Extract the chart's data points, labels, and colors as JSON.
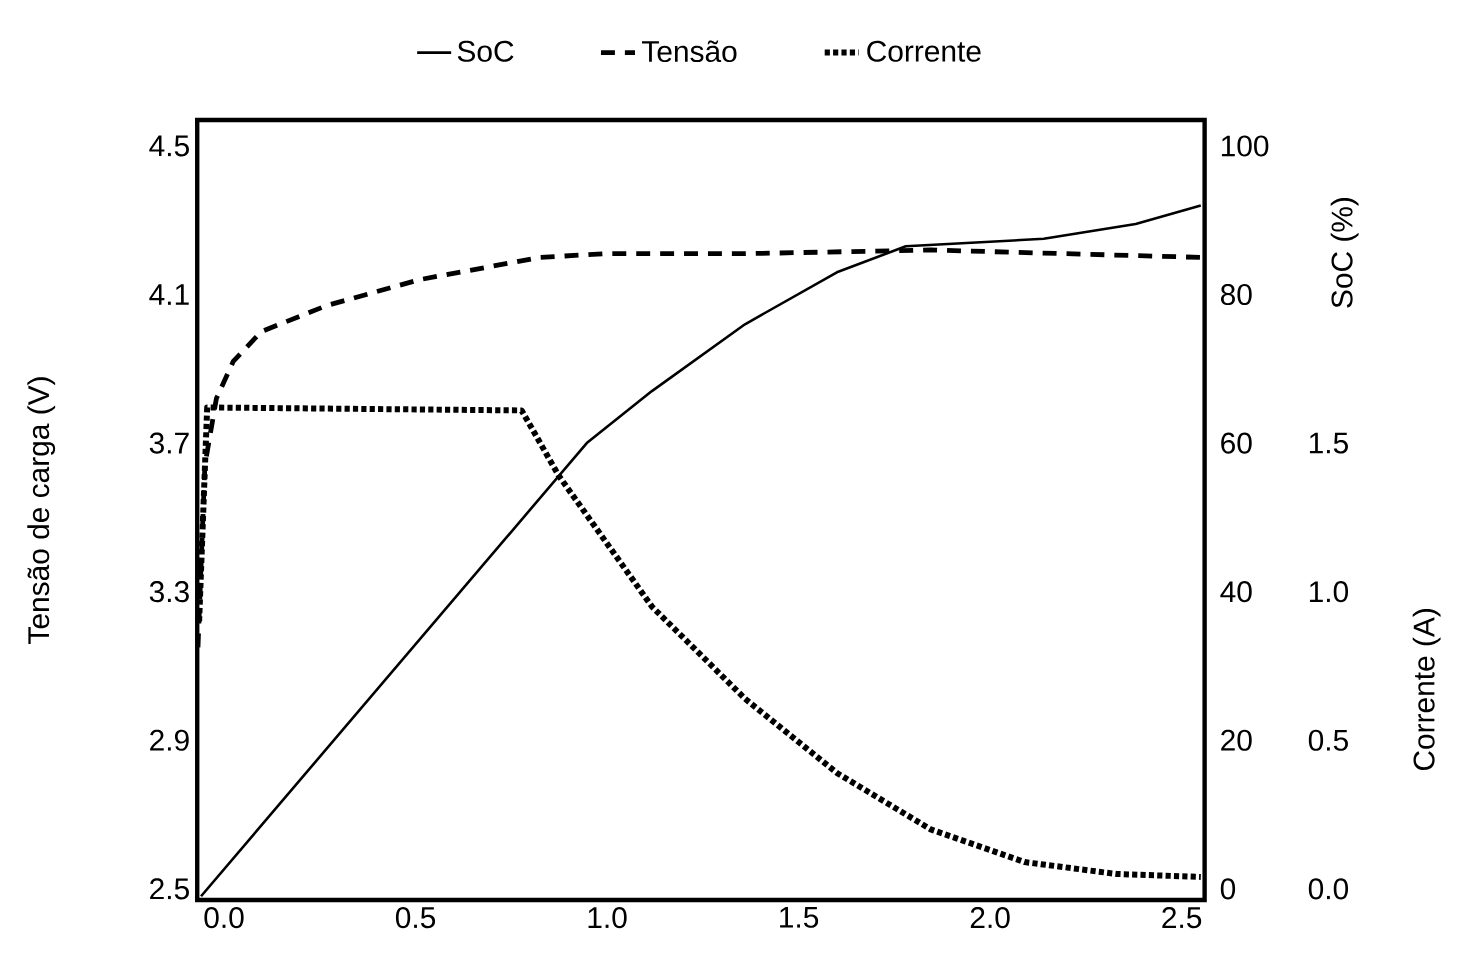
{
  "chart_data": {
    "type": "line",
    "ylabel": "Tensão de carga (V)",
    "y2label": "SoC (%)",
    "y3label": "Corrente (A)",
    "xlim": [
      -0.07,
      2.56
    ],
    "ylim": [
      2.47,
      4.57
    ],
    "y2lim": [
      -1.5,
      103.5
    ],
    "y3lim": [
      -0.0375,
      2.5875
    ],
    "xticks": [
      {
        "value": 0,
        "label": "0.0"
      },
      0.5,
      {
        "value": 1,
        "label": "1.0"
      },
      1.5,
      {
        "value": 2,
        "label": "2.0"
      },
      2.5
    ],
    "yticks": [
      2.5,
      2.9,
      3.3,
      3.7,
      4.1,
      4.5
    ],
    "y2ticks": [
      0,
      20,
      40,
      60,
      80,
      100
    ],
    "y3ticks": [
      {
        "value": 0,
        "label": "0.0"
      },
      0.5,
      {
        "value": 1,
        "label": "1.0"
      },
      1.5
    ],
    "legend": "top",
    "series": [
      {
        "name": "SoC",
        "color": "#000000",
        "line_style": "solid",
        "axis": "y2",
        "x": [
          -0.06,
          0.947,
          1.117,
          1.36,
          1.6,
          1.78,
          2.14,
          2.38,
          2.55
        ],
        "values": [
          -1,
          60,
          67,
          76,
          83,
          86.5,
          87.5,
          89.5,
          92
        ]
      },
      {
        "name": "Tensão",
        "color": "#000000",
        "line_style": "dashed",
        "x": [
          -0.068,
          -0.05,
          -0.02,
          0.024,
          0.097,
          0.267,
          0.51,
          0.825,
          0.995,
          1.36,
          1.845,
          2.55
        ],
        "values": [
          3.15,
          3.64,
          3.82,
          3.92,
          4.0,
          4.07,
          4.14,
          4.2,
          4.21,
          4.21,
          4.22,
          4.2
        ]
      },
      {
        "name": "Corrente",
        "color": "#000000",
        "line_style": "dotted",
        "axis": "y3",
        "x": [
          -0.065,
          -0.044,
          0.777,
          0.874,
          1.117,
          1.36,
          1.6,
          1.845,
          2.09,
          2.33,
          2.55
        ],
        "values": [
          0.9,
          1.62,
          1.61,
          1.39,
          0.95,
          0.64,
          0.39,
          0.2,
          0.09,
          0.05,
          0.04
        ]
      }
    ]
  }
}
